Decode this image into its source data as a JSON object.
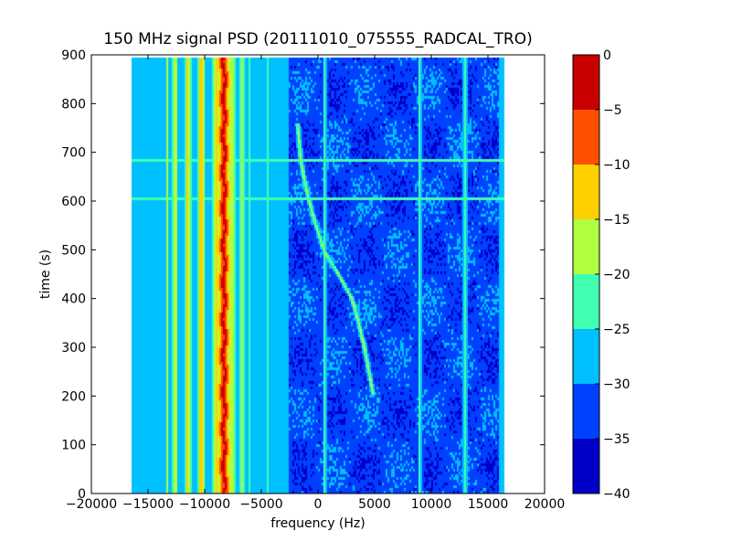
{
  "chart_data": {
    "type": "heatmap",
    "subtype": "filled-contour spectrogram",
    "title": "150 MHz signal PSD (20111010_075555_RADCAL_TRO)",
    "xlabel": "frequency (Hz)",
    "ylabel": "time (s)",
    "xlim": [
      -20000,
      20000
    ],
    "ylim": [
      0,
      900
    ],
    "xticks": [
      -20000,
      -15000,
      -10000,
      -5000,
      0,
      5000,
      10000,
      15000,
      20000
    ],
    "xtick_labels": [
      "−20000",
      "−15000",
      "−10000",
      "−5000",
      "0",
      "5000",
      "10000",
      "15000",
      "20000"
    ],
    "yticks": [
      0,
      100,
      200,
      300,
      400,
      500,
      600,
      700,
      800,
      900
    ],
    "ytick_labels": [
      "0",
      "100",
      "200",
      "300",
      "400",
      "500",
      "600",
      "700",
      "800",
      "900"
    ],
    "data_extent": {
      "x": [
        -16500,
        16500
      ],
      "y": [
        0,
        895
      ]
    },
    "background_level": -27.5,
    "colorbar": {
      "levels": [
        -40,
        -35,
        -30,
        -25,
        -20,
        -15,
        -10,
        -5,
        0
      ],
      "tick_labels": [
        "−40",
        "−35",
        "−30",
        "−25",
        "−20",
        "−15",
        "−10",
        "−5",
        "0"
      ],
      "band_colors": [
        "#0000c8",
        "#0040ff",
        "#00c0ff",
        "#40ffb0",
        "#b0ff40",
        "#ffd000",
        "#ff5000",
        "#c80000"
      ]
    },
    "spectral_lines": [
      {
        "label": "carrier",
        "freq_hz": -8300,
        "peak_db": -2,
        "width_hz": 300
      },
      {
        "label": "sideband",
        "freq_hz": -9000,
        "peak_db": -12,
        "width_hz": 250
      },
      {
        "label": "sideband",
        "freq_hz": -7600,
        "peak_db": -14,
        "width_hz": 250
      },
      {
        "label": "sideband",
        "freq_hz": -10300,
        "peak_db": -10,
        "width_hz": 200
      },
      {
        "label": "sideband",
        "freq_hz": -11500,
        "peak_db": -12,
        "width_hz": 180
      },
      {
        "label": "sideband",
        "freq_hz": -12600,
        "peak_db": -15,
        "width_hz": 180
      },
      {
        "label": "sideband",
        "freq_hz": -13300,
        "peak_db": -18,
        "width_hz": 160
      },
      {
        "label": "sideband",
        "freq_hz": -6700,
        "peak_db": -18,
        "width_hz": 200
      },
      {
        "label": "sideband",
        "freq_hz": -6100,
        "peak_db": -22,
        "width_hz": 180
      },
      {
        "label": "line",
        "freq_hz": -4500,
        "peak_db": -20,
        "width_hz": 150
      },
      {
        "label": "line",
        "freq_hz": 600,
        "peak_db": -20,
        "width_hz": 150
      },
      {
        "label": "line",
        "freq_hz": 9000,
        "peak_db": -20,
        "width_hz": 150
      },
      {
        "label": "line",
        "freq_hz": 13000,
        "peak_db": -20,
        "width_hz": 150
      },
      {
        "label": "line",
        "freq_hz": -16300,
        "peak_db": -22,
        "width_hz": 150
      }
    ],
    "drifting_trace": {
      "peak_db": -18,
      "points": [
        {
          "t": 760,
          "f": -1800
        },
        {
          "t": 680,
          "f": -1500
        },
        {
          "t": 620,
          "f": -1000
        },
        {
          "t": 560,
          "f": -300
        },
        {
          "t": 500,
          "f": 500
        },
        {
          "t": 450,
          "f": 1800
        },
        {
          "t": 400,
          "f": 3000
        },
        {
          "t": 350,
          "f": 3600
        },
        {
          "t": 300,
          "f": 4100
        },
        {
          "t": 250,
          "f": 4500
        },
        {
          "t": 200,
          "f": 4900
        }
      ]
    },
    "horizontal_lines": [
      {
        "time_s": 683,
        "peak_db": -22
      },
      {
        "time_s": 605,
        "peak_db": -22
      }
    ],
    "low_power_regions": [
      {
        "f": [
          -2500,
          16000
        ],
        "t": [
          0,
          895
        ],
        "level_db": -32.5
      }
    ]
  }
}
